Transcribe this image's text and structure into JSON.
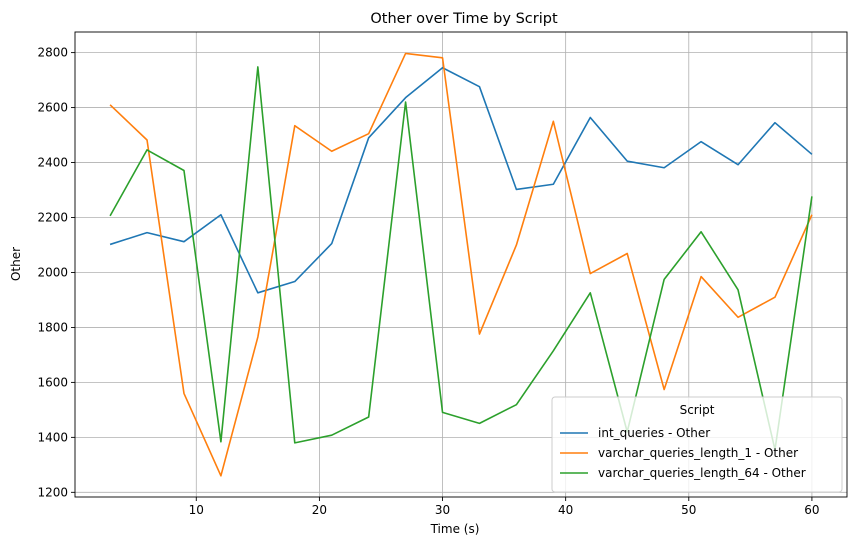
{
  "chart_data": {
    "type": "line",
    "title": "Other over Time by Script",
    "xlabel": "Time (s)",
    "ylabel": "Other",
    "xlim": [
      0.15,
      62.85
    ],
    "ylim": [
      1183,
      2875
    ],
    "xticks": [
      10,
      20,
      30,
      40,
      50,
      60
    ],
    "yticks": [
      1200,
      1400,
      1600,
      1800,
      2000,
      2200,
      2400,
      2600,
      2800
    ],
    "grid": true,
    "legend_title": "Script",
    "legend_position": "lower-right",
    "x": [
      3,
      6,
      9,
      12,
      15,
      18,
      21,
      24,
      27,
      30,
      33,
      36,
      39,
      42,
      45,
      48,
      51,
      54,
      57,
      60
    ],
    "series": [
      {
        "name": "int_queries - Other",
        "color": "#1f77b4",
        "values": [
          2102,
          2145,
          2112,
          2210,
          1926,
          1967,
          2105,
          2490,
          2636,
          2745,
          2676,
          2302,
          2321,
          2564,
          2405,
          2381,
          2476,
          2392,
          2545,
          2430
        ]
      },
      {
        "name": "varchar_queries_length_1 - Other",
        "color": "#ff7f0e",
        "values": [
          2610,
          2482,
          1560,
          1260,
          1765,
          2534,
          2441,
          2505,
          2797,
          2781,
          1776,
          2100,
          2550,
          1996,
          2069,
          1574,
          1985,
          1837,
          1910,
          2210
        ]
      },
      {
        "name": "varchar_queries_length_64 - Other",
        "color": "#2ca02c",
        "values": [
          2206,
          2446,
          2371,
          1384,
          2748,
          1380,
          1408,
          1474,
          2620,
          1491,
          1451,
          1519,
          1715,
          1926,
          1420,
          1975,
          2148,
          1937,
          1355,
          2277
        ]
      }
    ]
  }
}
